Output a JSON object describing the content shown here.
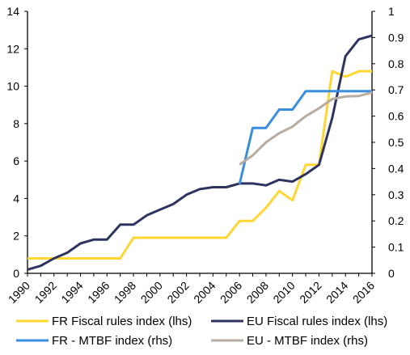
{
  "chart_data": {
    "type": "line",
    "x": [
      1990,
      1991,
      1992,
      1993,
      1994,
      1995,
      1996,
      1997,
      1998,
      1999,
      2000,
      2001,
      2002,
      2003,
      2004,
      2005,
      2006,
      2007,
      2008,
      2009,
      2010,
      2011,
      2012,
      2013,
      2014,
      2015,
      2016
    ],
    "x_tick_labels": [
      "1990",
      "1992",
      "1994",
      "1996",
      "1998",
      "2000",
      "2002",
      "2004",
      "2006",
      "2008",
      "2010",
      "2012",
      "2014",
      "2016"
    ],
    "y_left": {
      "ylim": [
        0,
        14
      ],
      "ticks": [
        "0",
        "2",
        "4",
        "6",
        "8",
        "10",
        "12",
        "14"
      ]
    },
    "y_right": {
      "ylim": [
        0,
        1
      ],
      "ticks": [
        "0",
        "0.1",
        "0.2",
        "0.3",
        "0.4",
        "0.5",
        "0.6",
        "0.7",
        "0.8",
        "0.9",
        "1"
      ]
    },
    "grid": false,
    "legend_position": "bottom",
    "series": [
      {
        "name": "FR Fiscal rules index (lhs)",
        "axis": "left",
        "color": "#FFD632",
        "x": [
          1990,
          1991,
          1992,
          1993,
          1994,
          1995,
          1996,
          1997,
          1998,
          1999,
          2000,
          2001,
          2002,
          2003,
          2004,
          2005,
          2006,
          2007,
          2008,
          2009,
          2010,
          2011,
          2012,
          2013,
          2014,
          2015,
          2016
        ],
        "values": [
          0.8,
          0.8,
          0.8,
          0.8,
          0.8,
          0.8,
          0.8,
          0.8,
          1.9,
          1.9,
          1.9,
          1.9,
          1.9,
          1.9,
          1.9,
          1.9,
          2.8,
          2.8,
          3.5,
          4.4,
          3.9,
          5.8,
          5.8,
          10.8,
          10.5,
          10.8,
          10.8
        ]
      },
      {
        "name": "EU Fiscal rules index (lhs)",
        "axis": "left",
        "color": "#2E3460",
        "x": [
          1990,
          1991,
          1992,
          1993,
          1994,
          1995,
          1996,
          1997,
          1998,
          1999,
          2000,
          2001,
          2002,
          2003,
          2004,
          2005,
          2006,
          2007,
          2008,
          2009,
          2010,
          2011,
          2012,
          2013,
          2014,
          2015,
          2016
        ],
        "values": [
          0.2,
          0.4,
          0.8,
          1.1,
          1.6,
          1.8,
          1.8,
          2.6,
          2.6,
          3.1,
          3.4,
          3.7,
          4.2,
          4.5,
          4.6,
          4.6,
          4.8,
          4.8,
          4.7,
          5.0,
          4.9,
          5.3,
          5.8,
          8.3,
          11.6,
          12.5,
          12.7
        ]
      },
      {
        "name": "FR - MTBF index (rhs)",
        "axis": "right",
        "color": "#3A8EE0",
        "x": [
          2006,
          2007,
          2008,
          2009,
          2010,
          2011,
          2012,
          2013,
          2014,
          2015,
          2016
        ],
        "values": [
          0.34,
          0.555,
          0.555,
          0.625,
          0.625,
          0.695,
          0.695,
          0.695,
          0.695,
          0.695,
          0.695
        ]
      },
      {
        "name": "EU - MTBF index (rhs)",
        "axis": "right",
        "color": "#B8ABA0",
        "x": [
          2006,
          2007,
          2008,
          2009,
          2010,
          2011,
          2012,
          2013,
          2014,
          2015,
          2016
        ],
        "values": [
          0.415,
          0.45,
          0.5,
          0.535,
          0.56,
          0.6,
          0.63,
          0.665,
          0.675,
          0.677,
          0.69
        ]
      }
    ]
  }
}
